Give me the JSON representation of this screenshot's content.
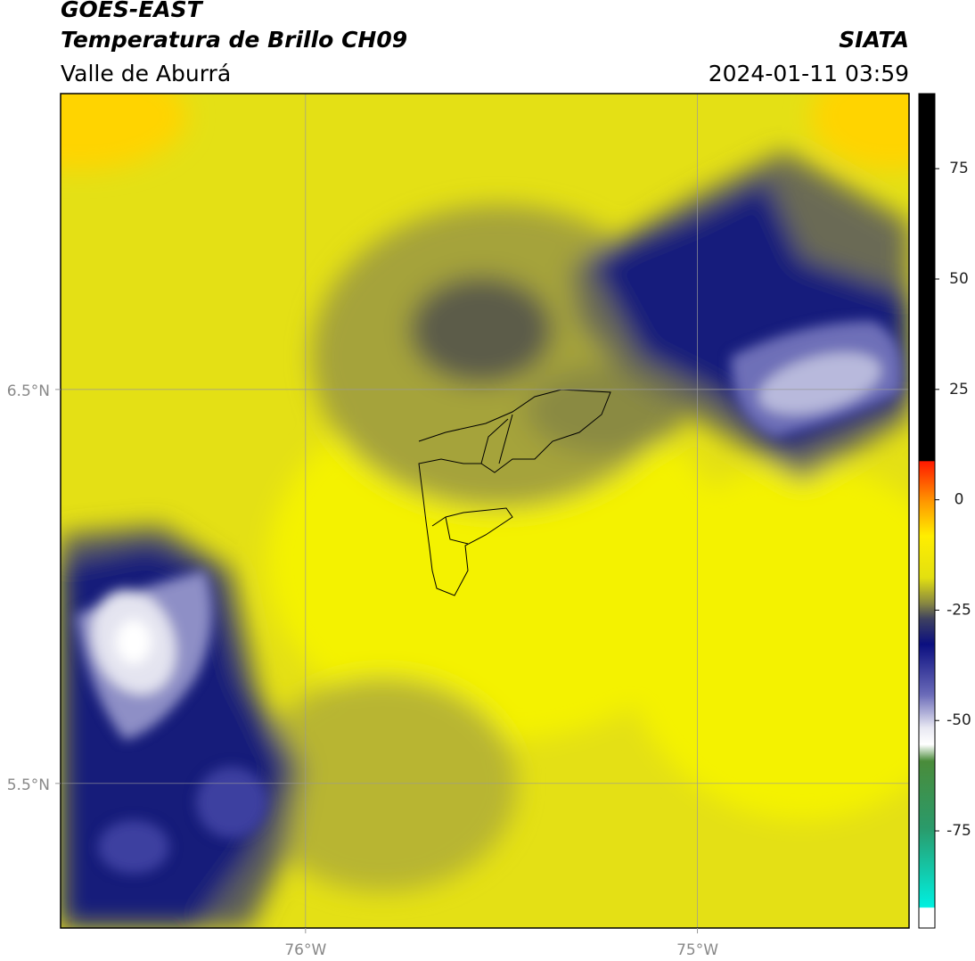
{
  "chart_data": {
    "type": "map",
    "title": "GOES-EAST",
    "subtitle": "Temperatura de Brillo CH09",
    "location": "Valle de Aburrá",
    "source": "SIATA",
    "datetime": "2024-01-11 03:59",
    "xlim": [
      -76.625,
      -74.46
    ],
    "ylim": [
      5.133,
      7.251
    ],
    "xticks": [
      {
        "value": -76,
        "label": "76°W"
      },
      {
        "value": -75,
        "label": "75°W"
      }
    ],
    "yticks": [
      {
        "value": 6.5,
        "label": "6.5°N"
      },
      {
        "value": 5.5,
        "label": "5.5°N"
      }
    ],
    "grid": true,
    "colorbar": {
      "lim": [
        -97,
        92
      ],
      "ticks": [
        75,
        50,
        25,
        0,
        -25,
        -50,
        -75
      ]
    }
  }
}
